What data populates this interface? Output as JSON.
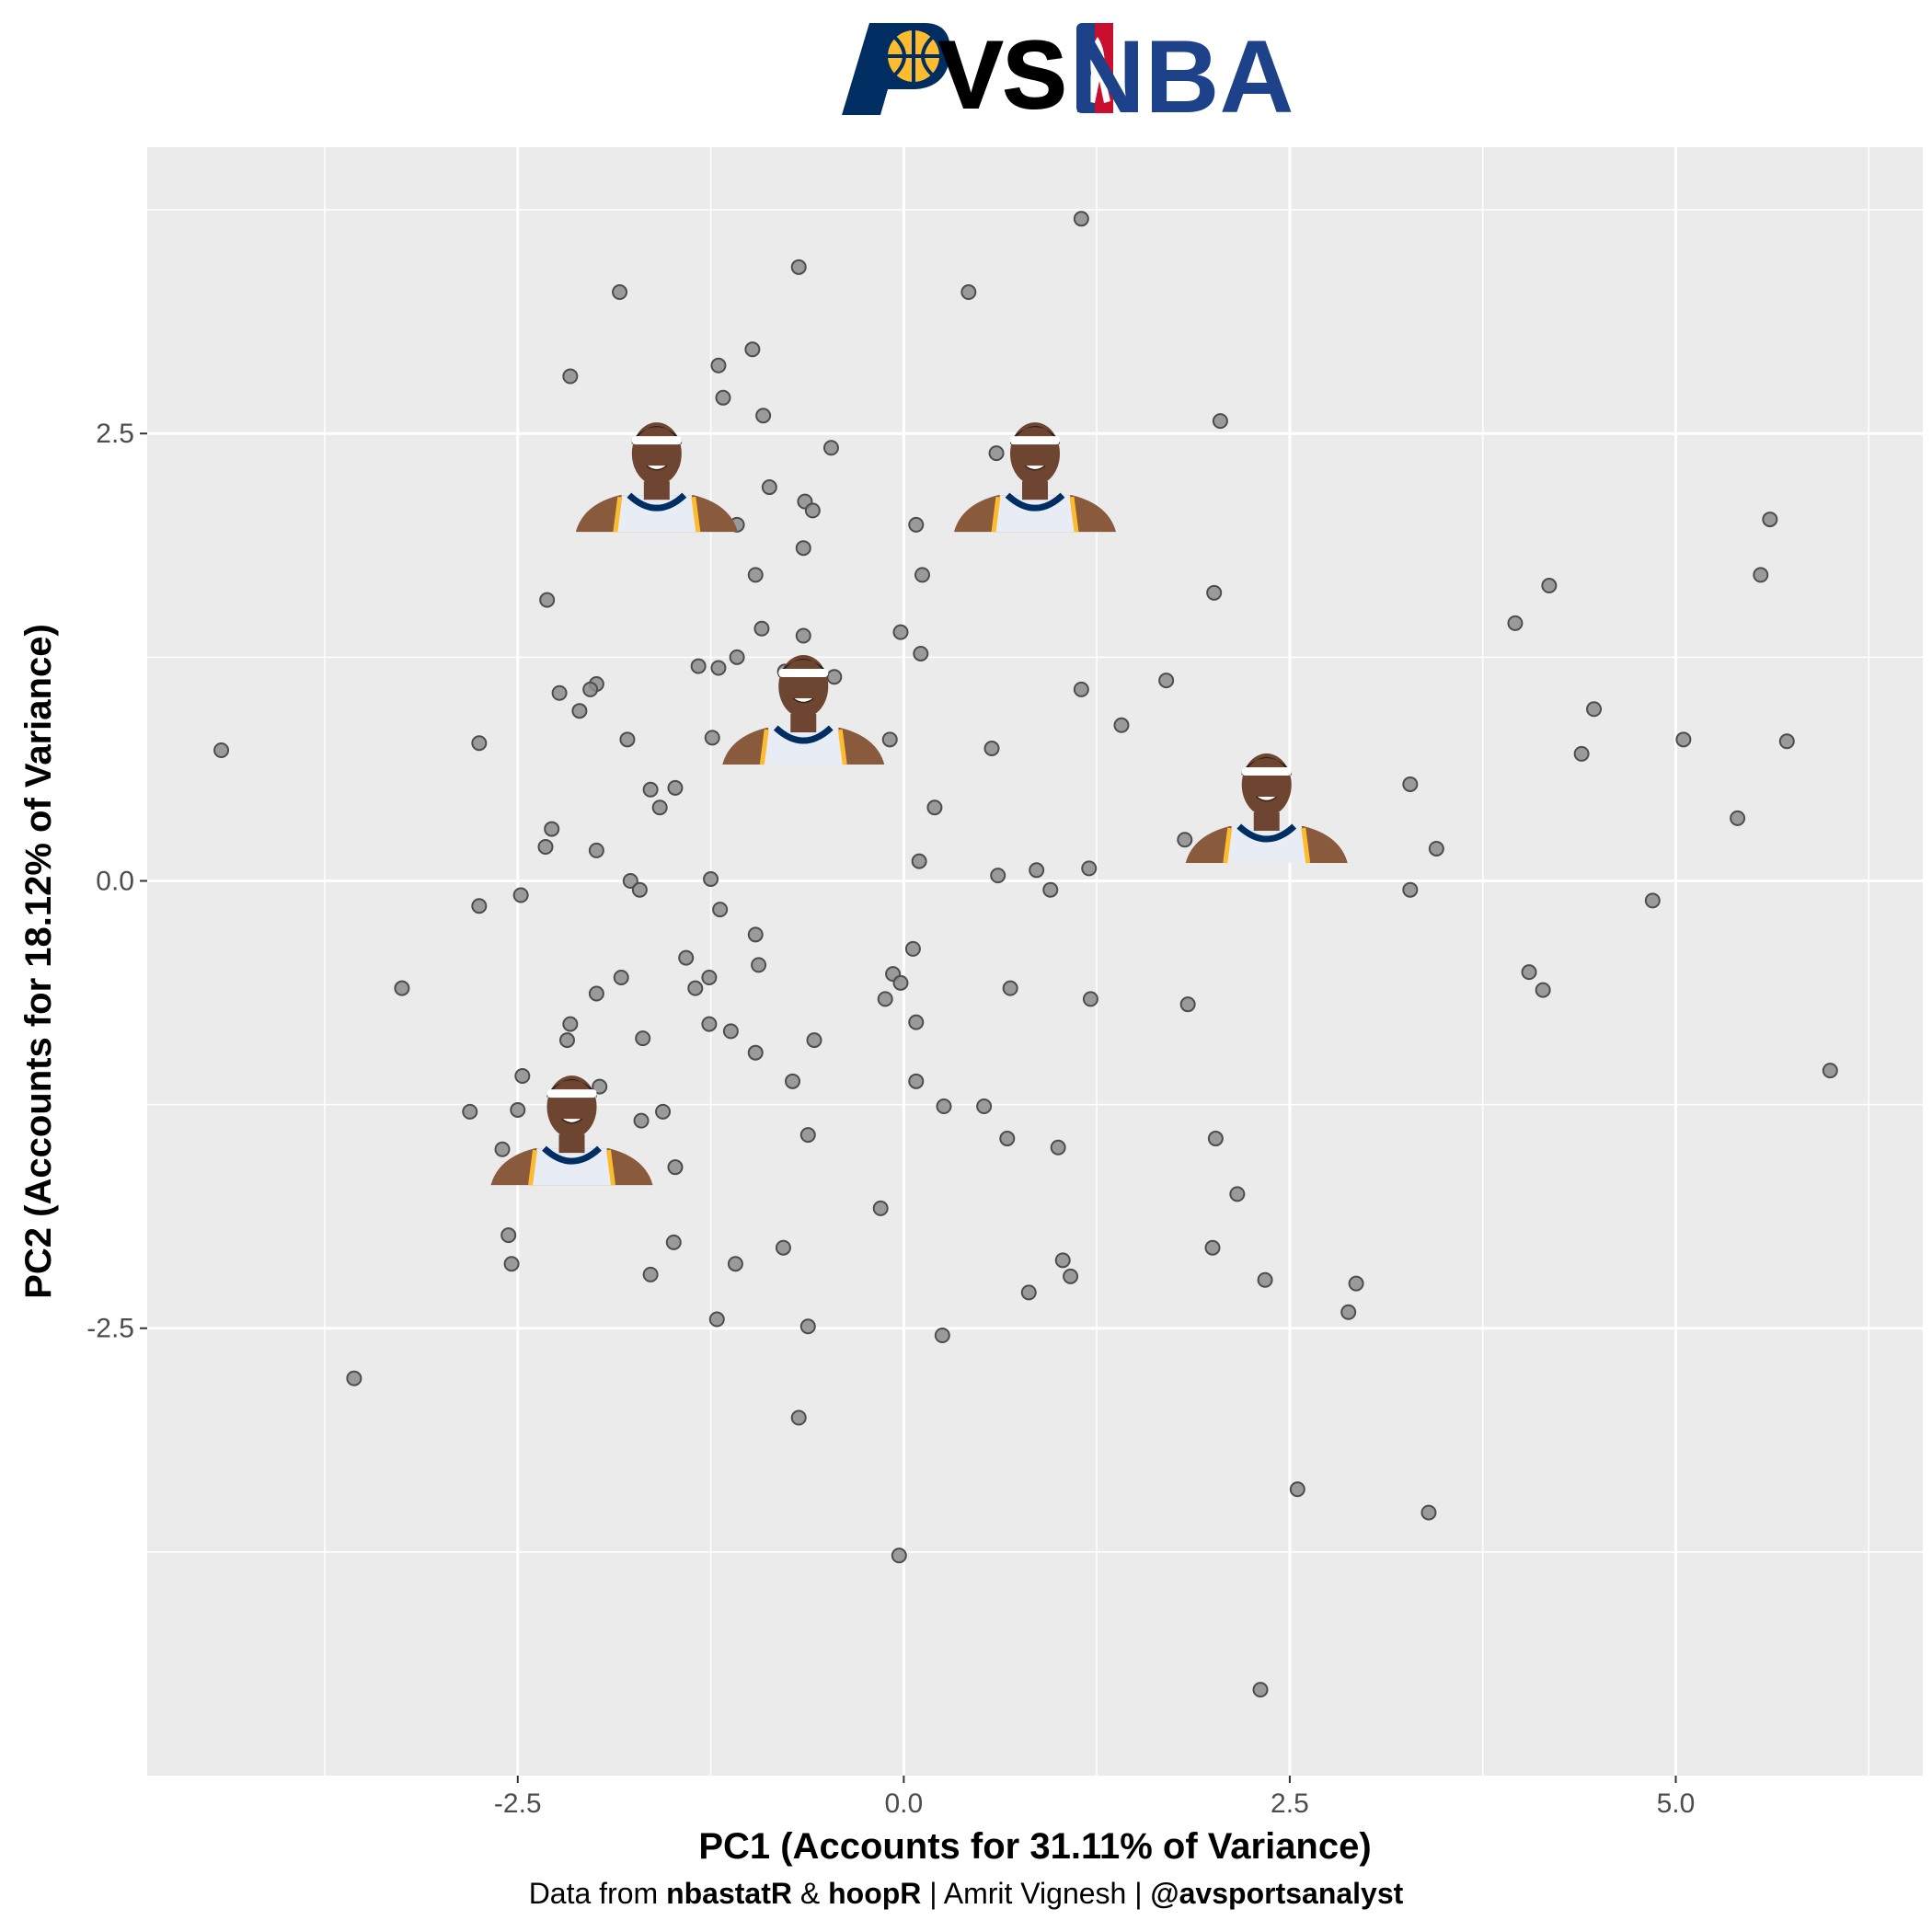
{
  "header": {
    "vs_text": "VS",
    "nba_text": "NBA",
    "team_logo": "pacers-logo",
    "league_logo": "nba-logo"
  },
  "colors": {
    "panel_bg": "#ebebeb",
    "grid": "#ffffff",
    "point_fill": "#8c8c8c",
    "point_stroke": "#4d4d4d",
    "pacers_navy": "#002d62",
    "pacers_gold": "#fdbb30",
    "nba_blue": "#1d428a",
    "nba_red": "#c8102e"
  },
  "caption": {
    "prefix": "Data from ",
    "source1": "nbastatR",
    "amp": " & ",
    "source2": "hoopR",
    "mid": " | Amrit Vignesh | ",
    "handle": "@avsportsanalyst"
  },
  "chart_data": {
    "type": "scatter",
    "title": "",
    "xlabel": "PC1 (Accounts for 31.11% of Variance)",
    "ylabel": "PC2 (Accounts for 18.12% of Variance)",
    "xlim": [
      -4.9,
      6.6
    ],
    "ylim": [
      -5.0,
      4.1
    ],
    "xticks": [
      -2.5,
      0.0,
      2.5,
      5.0
    ],
    "xtick_labels": [
      "-2.5",
      "0.0",
      "2.5",
      "5.0"
    ],
    "yticks": [
      -2.5,
      0.0,
      2.5
    ],
    "ytick_labels": [
      "-2.5",
      "0.0",
      "2.5"
    ],
    "grid": true,
    "legend": "none",
    "points": [
      [
        1.15,
        3.7
      ],
      [
        -0.68,
        3.43
      ],
      [
        -1.84,
        3.29
      ],
      [
        0.42,
        3.29
      ],
      [
        -0.98,
        2.97
      ],
      [
        -1.2,
        2.88
      ],
      [
        -2.16,
        2.82
      ],
      [
        -1.17,
        2.7
      ],
      [
        -0.91,
        2.6
      ],
      [
        2.05,
        2.57
      ],
      [
        -0.47,
        2.42
      ],
      [
        0.6,
        2.39
      ],
      [
        -0.87,
        2.2
      ],
      [
        -0.64,
        2.12
      ],
      [
        -0.59,
        2.07
      ],
      [
        -1.08,
        1.99
      ],
      [
        0.08,
        1.99
      ],
      [
        -0.65,
        1.86
      ],
      [
        -0.96,
        1.71
      ],
      [
        0.12,
        1.71
      ],
      [
        -2.31,
        1.57
      ],
      [
        2.01,
        1.61
      ],
      [
        -0.92,
        1.41
      ],
      [
        -0.65,
        1.37
      ],
      [
        -0.02,
        1.39
      ],
      [
        0.11,
        1.27
      ],
      [
        -1.08,
        1.25
      ],
      [
        -1.33,
        1.2
      ],
      [
        -1.2,
        1.19
      ],
      [
        -0.77,
        1.17
      ],
      [
        -0.45,
        1.14
      ],
      [
        -1.99,
        1.1
      ],
      [
        -2.03,
        1.07
      ],
      [
        -2.23,
        1.05
      ],
      [
        1.15,
        1.07
      ],
      [
        1.7,
        1.12
      ],
      [
        -2.1,
        0.95
      ],
      [
        1.41,
        0.87
      ],
      [
        -2.75,
        0.77
      ],
      [
        -1.79,
        0.79
      ],
      [
        -1.24,
        0.8
      ],
      [
        -0.09,
        0.79
      ],
      [
        0.57,
        0.74
      ],
      [
        -4.42,
        0.73
      ],
      [
        -1.48,
        0.52
      ],
      [
        -1.64,
        0.51
      ],
      [
        -1.58,
        0.41
      ],
      [
        0.2,
        0.41
      ],
      [
        -2.28,
        0.29
      ],
      [
        1.82,
        0.23
      ],
      [
        -2.32,
        0.19
      ],
      [
        -1.99,
        0.17
      ],
      [
        0.1,
        0.11
      ],
      [
        0.86,
        0.06
      ],
      [
        1.2,
        0.07
      ],
      [
        -1.77,
        0.0
      ],
      [
        -1.25,
        0.01
      ],
      [
        0.61,
        0.03
      ],
      [
        -1.71,
        -0.05
      ],
      [
        0.95,
        -0.05
      ],
      [
        -2.48,
        -0.08
      ],
      [
        -2.75,
        -0.14
      ],
      [
        -1.19,
        -0.16
      ],
      [
        3.28,
        -0.05
      ],
      [
        4.85,
        -0.11
      ],
      [
        -0.96,
        -0.3
      ],
      [
        0.06,
        -0.38
      ],
      [
        -1.41,
        -0.43
      ],
      [
        -0.94,
        -0.47
      ],
      [
        -0.07,
        -0.52
      ],
      [
        -1.83,
        -0.54
      ],
      [
        -1.26,
        -0.54
      ],
      [
        4.05,
        -0.51
      ],
      [
        -3.25,
        -0.6
      ],
      [
        -1.35,
        -0.6
      ],
      [
        -0.02,
        -0.57
      ],
      [
        0.69,
        -0.6
      ],
      [
        -1.99,
        -0.63
      ],
      [
        -0.12,
        -0.66
      ],
      [
        1.21,
        -0.66
      ],
      [
        1.84,
        -0.69
      ],
      [
        4.14,
        -0.61
      ],
      [
        -2.16,
        -0.8
      ],
      [
        -1.26,
        -0.8
      ],
      [
        -1.12,
        -0.84
      ],
      [
        0.08,
        -0.79
      ],
      [
        -2.18,
        -0.89
      ],
      [
        -1.69,
        -0.88
      ],
      [
        -0.58,
        -0.89
      ],
      [
        -0.96,
        -0.96
      ],
      [
        -2.47,
        -1.09
      ],
      [
        -0.72,
        -1.12
      ],
      [
        -1.97,
        -1.15
      ],
      [
        0.08,
        -1.12
      ],
      [
        6.0,
        -1.06
      ],
      [
        -2.81,
        -1.29
      ],
      [
        -2.5,
        -1.28
      ],
      [
        -1.56,
        -1.29
      ],
      [
        -1.7,
        -1.34
      ],
      [
        0.26,
        -1.26
      ],
      [
        0.52,
        -1.26
      ],
      [
        -2.6,
        -1.5
      ],
      [
        -0.62,
        -1.42
      ],
      [
        0.67,
        -1.44
      ],
      [
        1.0,
        -1.49
      ],
      [
        2.02,
        -1.44
      ],
      [
        -1.48,
        -1.6
      ],
      [
        -0.15,
        -1.83
      ],
      [
        2.16,
        -1.75
      ],
      [
        -2.56,
        -1.98
      ],
      [
        -1.49,
        -2.02
      ],
      [
        -0.78,
        -2.05
      ],
      [
        2.0,
        -2.05
      ],
      [
        -2.54,
        -2.14
      ],
      [
        -1.09,
        -2.14
      ],
      [
        -1.64,
        -2.2
      ],
      [
        1.03,
        -2.12
      ],
      [
        1.08,
        -2.21
      ],
      [
        2.34,
        -2.23
      ],
      [
        2.93,
        -2.25
      ],
      [
        0.81,
        -2.3
      ],
      [
        2.88,
        -2.41
      ],
      [
        -1.21,
        -2.45
      ],
      [
        -0.62,
        -2.49
      ],
      [
        0.25,
        -2.54
      ],
      [
        -3.56,
        -2.78
      ],
      [
        -0.68,
        -3.0
      ],
      [
        2.55,
        -3.4
      ],
      [
        3.4,
        -3.53
      ],
      [
        -0.03,
        -3.77
      ],
      [
        2.31,
        -4.52
      ],
      [
        3.28,
        0.54
      ],
      [
        3.45,
        0.18
      ],
      [
        3.96,
        1.44
      ],
      [
        4.18,
        1.65
      ],
      [
        4.47,
        0.96
      ],
      [
        4.39,
        0.71
      ],
      [
        5.05,
        0.79
      ],
      [
        5.4,
        0.35
      ],
      [
        5.55,
        1.71
      ],
      [
        5.61,
        2.02
      ],
      [
        5.72,
        0.78
      ]
    ],
    "player_images": [
      {
        "name": "player-headshot-1",
        "x": -1.6,
        "y": 1.95
      },
      {
        "name": "player-headshot-2",
        "x": 0.85,
        "y": 1.95
      },
      {
        "name": "player-headshot-3",
        "x": -0.65,
        "y": 0.65
      },
      {
        "name": "player-headshot-4",
        "x": 2.35,
        "y": 0.1
      },
      {
        "name": "player-headshot-5",
        "x": -2.15,
        "y": -1.7
      }
    ]
  }
}
